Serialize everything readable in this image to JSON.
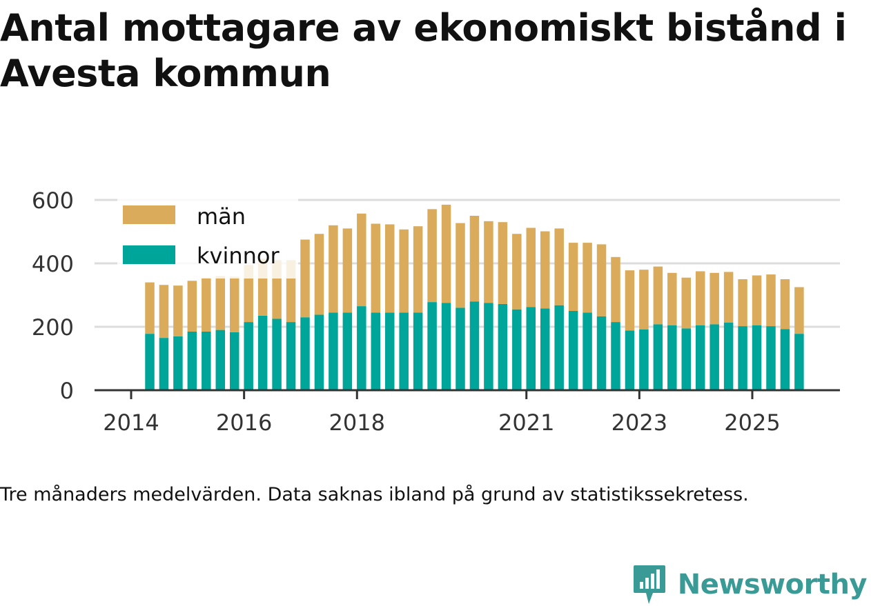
{
  "title": "Antal mottagare av ekonomiskt bistånd i Avesta kommun",
  "note": "Tre månaders medelvärden. Data saknas ibland på grund av statistikssekretess.",
  "brand": {
    "name": "Newsworthy",
    "color": "#3a9a96",
    "icon": "newsworthy-logo-icon"
  },
  "colors": {
    "man": "#d9ab5a",
    "kvinnor": "#00a59a",
    "grid": "#dcdcdc",
    "axis": "#333333"
  },
  "chart_data": {
    "type": "bar",
    "stacked": true,
    "title": "Antal mottagare av ekonomiskt bistånd i Avesta kommun",
    "xlabel": "",
    "ylabel": "",
    "ylim": [
      0,
      640
    ],
    "yticks": [
      0,
      200,
      400,
      600
    ],
    "xticks": [
      {
        "label": "2014",
        "pos": 2014.0
      },
      {
        "label": "2016",
        "pos": 2016.0
      },
      {
        "label": "2018",
        "pos": 2018.0
      },
      {
        "label": "2021",
        "pos": 2021.0
      },
      {
        "label": "2023",
        "pos": 2023.0
      },
      {
        "label": "2025",
        "pos": 2025.0
      }
    ],
    "legend": {
      "placement": "top-left",
      "entries": [
        "män",
        "kvinnor"
      ]
    },
    "categories": [
      "2014-Q2",
      "2014-Q3",
      "2014-Q4",
      "2015-Q1",
      "2015-Q2",
      "2015-Q3",
      "2015-Q4",
      "2016-Q1",
      "2016-Q2",
      "2016-Q3",
      "2016-Q4",
      "2017-Q1",
      "2017-Q2",
      "2017-Q3",
      "2017-Q4",
      "2018-Q1",
      "2018-Q2",
      "2018-Q3",
      "2018-Q4",
      "2019-Q1",
      "2019-Q2",
      "2019-Q3",
      "2019-Q4",
      "2020-Q1",
      "2020-Q2",
      "2020-Q3",
      "2020-Q4",
      "2021-Q1",
      "2021-Q2",
      "2021-Q3",
      "2021-Q4",
      "2022-Q1",
      "2022-Q2",
      "2022-Q3",
      "2022-Q4",
      "2023-Q1",
      "2023-Q2",
      "2023-Q3",
      "2023-Q4",
      "2024-Q1",
      "2024-Q2",
      "2024-Q3",
      "2024-Q4",
      "2025-Q1",
      "2025-Q2",
      "2025-Q3",
      "2025-Q4"
    ],
    "x": [
      2014.33,
      2014.58,
      2014.83,
      2015.08,
      2015.33,
      2015.58,
      2015.83,
      2016.08,
      2016.33,
      2016.58,
      2016.83,
      2017.08,
      2017.33,
      2017.58,
      2017.83,
      2018.08,
      2018.33,
      2018.58,
      2018.83,
      2019.08,
      2019.33,
      2019.58,
      2019.83,
      2020.08,
      2020.33,
      2020.58,
      2020.83,
      2021.08,
      2021.33,
      2021.58,
      2021.83,
      2022.08,
      2022.33,
      2022.58,
      2022.83,
      2023.08,
      2023.33,
      2023.58,
      2023.83,
      2024.08,
      2024.33,
      2024.58,
      2024.83,
      2025.08,
      2025.33,
      2025.58,
      2025.83
    ],
    "series": [
      {
        "name": "kvinnor",
        "values": [
          178,
          165,
          170,
          185,
          185,
          190,
          183,
          215,
          235,
          225,
          215,
          230,
          238,
          245,
          245,
          265,
          245,
          245,
          245,
          245,
          278,
          275,
          260,
          280,
          275,
          272,
          255,
          262,
          258,
          268,
          250,
          245,
          233,
          215,
          188,
          192,
          208,
          205,
          195,
          205,
          208,
          213,
          202,
          205,
          202,
          193,
          178
        ]
      },
      {
        "name": "män",
        "values": [
          162,
          167,
          160,
          160,
          170,
          170,
          175,
          180,
          180,
          185,
          195,
          245,
          255,
          275,
          265,
          292,
          280,
          278,
          262,
          272,
          293,
          310,
          267,
          270,
          258,
          258,
          238,
          250,
          243,
          242,
          215,
          220,
          227,
          205,
          190,
          188,
          182,
          165,
          160,
          170,
          162,
          160,
          148,
          157,
          163,
          157,
          147
        ]
      }
    ]
  }
}
